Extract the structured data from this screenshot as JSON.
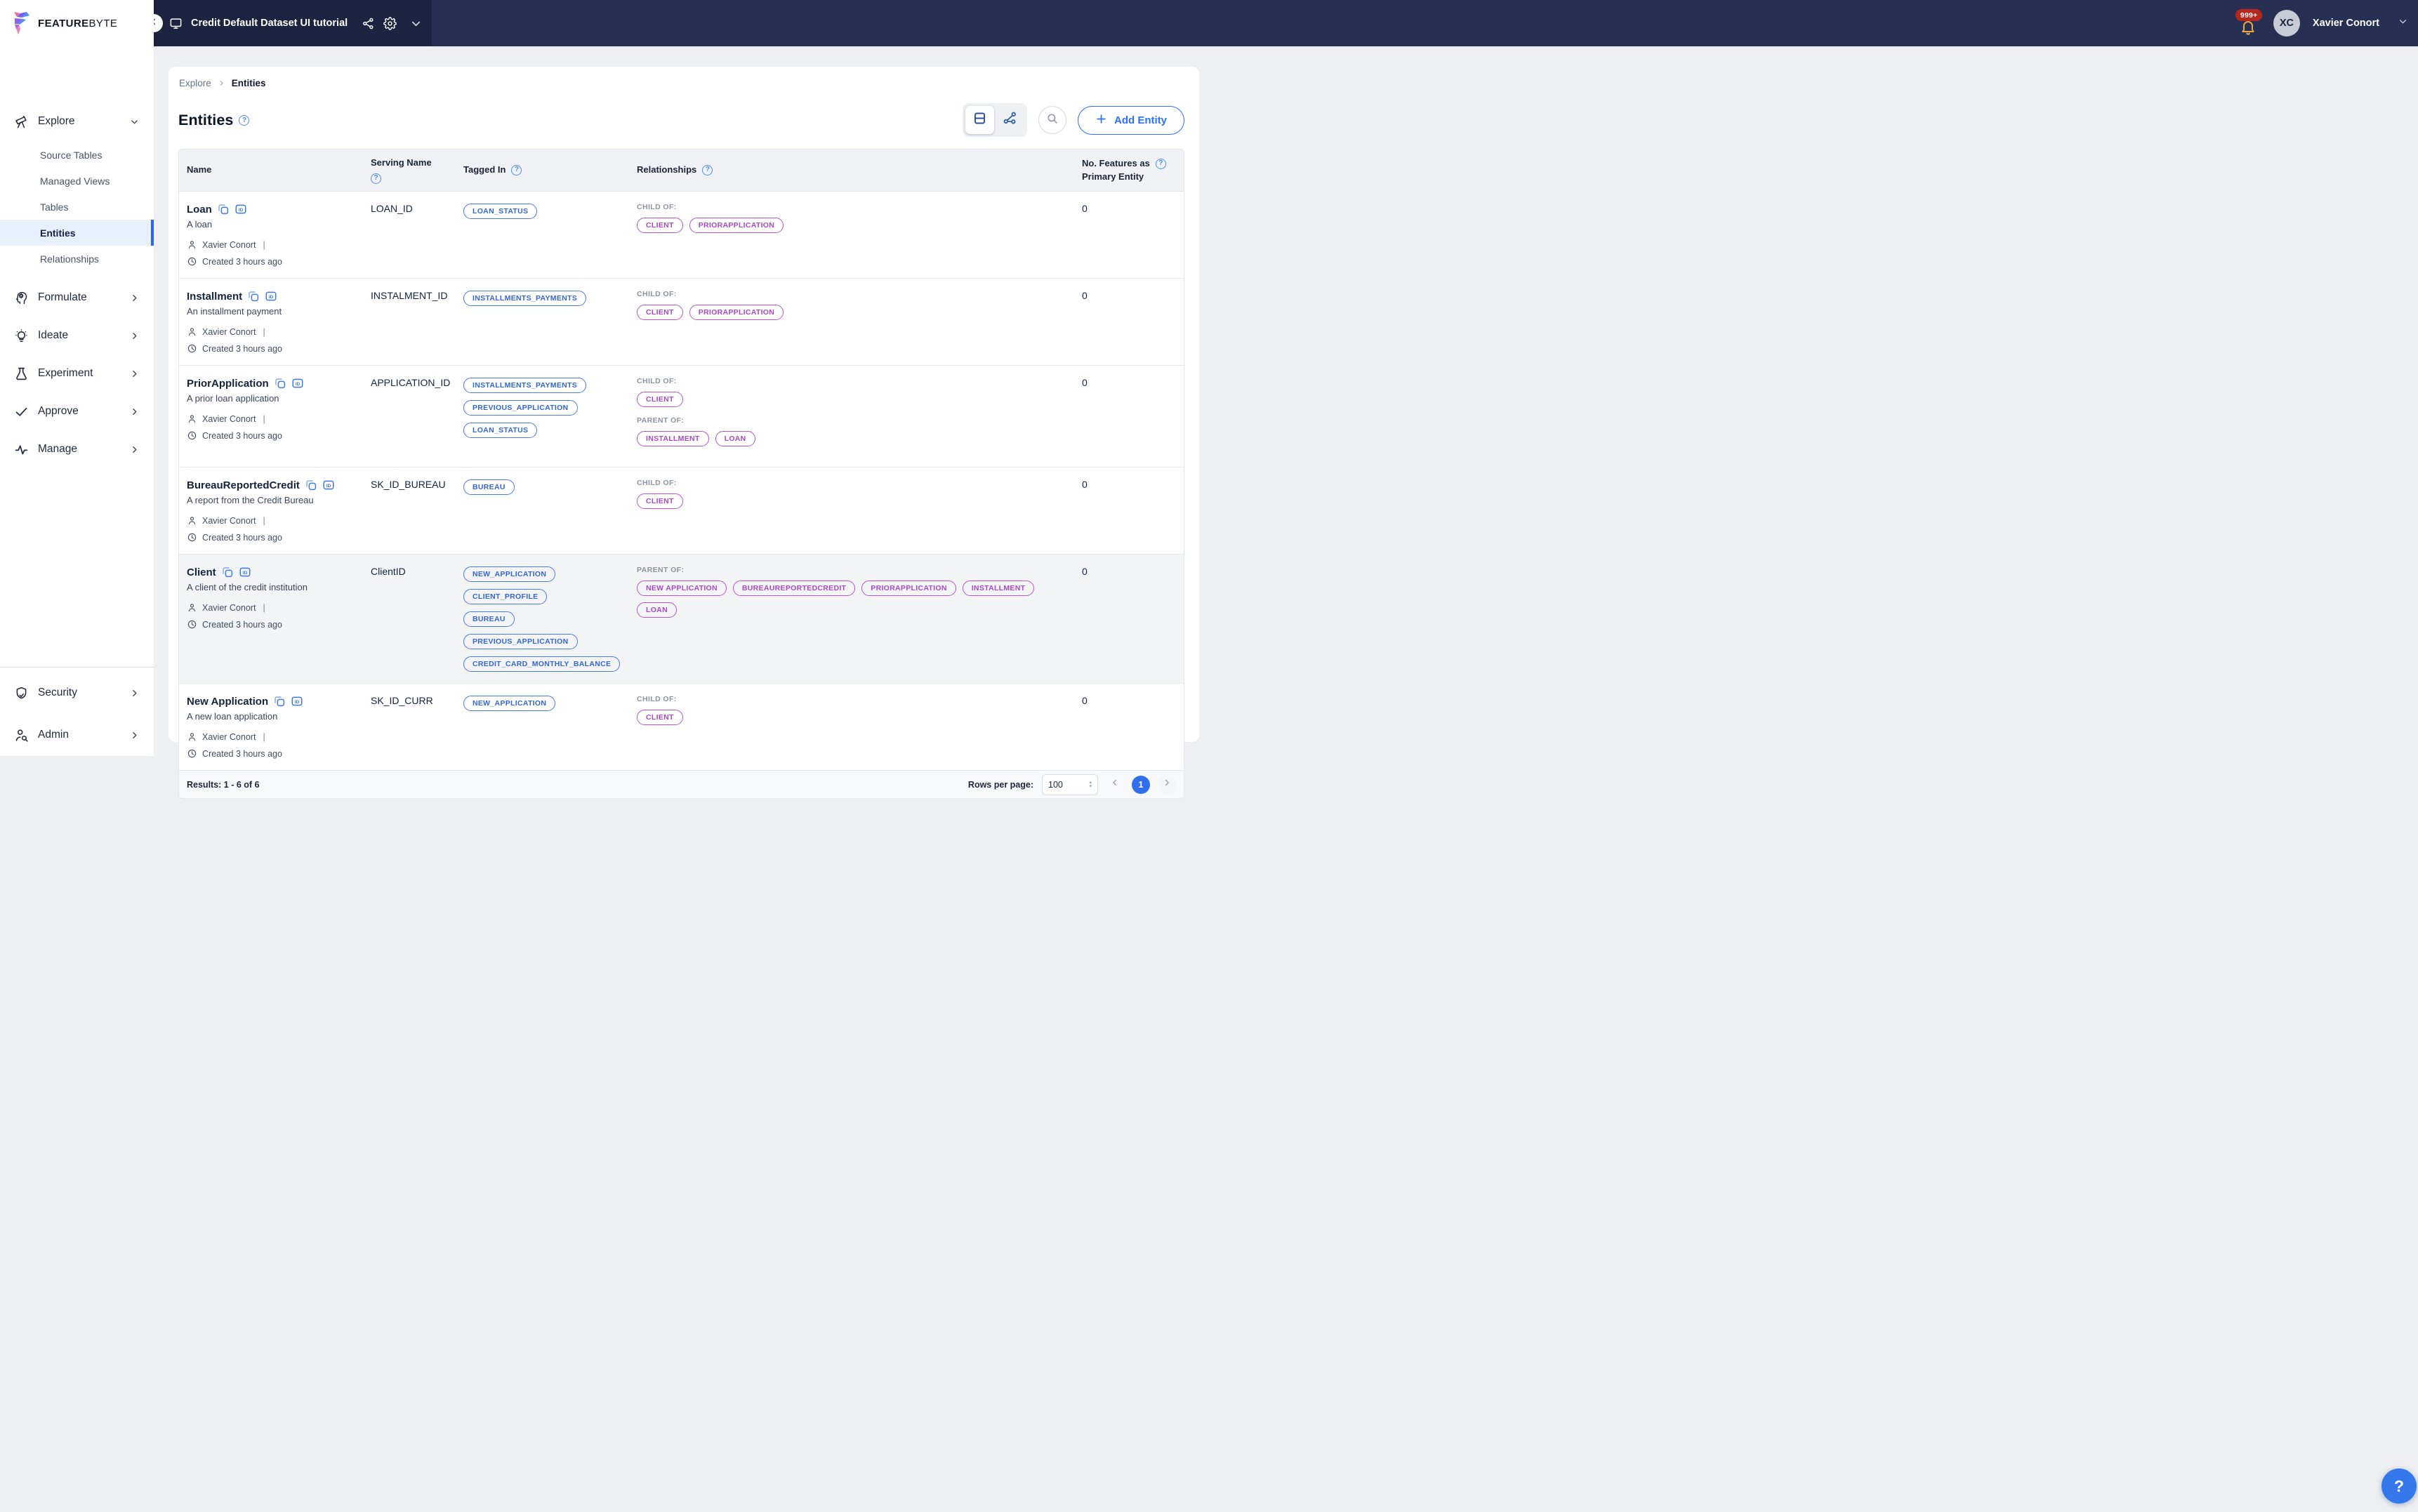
{
  "brand": {
    "name_bold": "FEATURE",
    "name_light": "BYTE"
  },
  "topbar": {
    "project_title": "Credit Default Dataset UI tutorial",
    "notifications_badge": "999+",
    "user": {
      "initials": "XC",
      "name": "Xavier Conort"
    }
  },
  "sidebar": {
    "items": [
      {
        "label": "Explore",
        "icon": "telescope-icon",
        "chevron": "down",
        "children": [
          {
            "label": "Source Tables"
          },
          {
            "label": "Managed Views"
          },
          {
            "label": "Tables"
          },
          {
            "label": "Entities",
            "active": true
          },
          {
            "label": "Relationships"
          }
        ]
      },
      {
        "label": "Formulate",
        "icon": "formulate-head-gear-icon",
        "chevron": "right"
      },
      {
        "label": "Ideate",
        "icon": "lightbulb-icon",
        "chevron": "right"
      },
      {
        "label": "Experiment",
        "icon": "flask-icon",
        "chevron": "right"
      },
      {
        "label": "Approve",
        "icon": "check-icon",
        "chevron": "right"
      },
      {
        "label": "Manage",
        "icon": "activity-icon",
        "chevron": "right"
      }
    ],
    "bottom_items": [
      {
        "label": "Security",
        "icon": "shield-check-icon",
        "chevron": "right"
      },
      {
        "label": "Admin",
        "icon": "user-search-icon",
        "chevron": "right"
      }
    ]
  },
  "breadcrumb": {
    "root": "Explore",
    "current": "Entities"
  },
  "page": {
    "title": "Entities"
  },
  "toolbar": {
    "add_button_label": "Add Entity"
  },
  "table": {
    "columns": {
      "name": "Name",
      "serving": "Serving Name",
      "tagged": "Tagged In",
      "relationships": "Relationships",
      "features_line1": "No. Features as",
      "features_line2": "Primary Entity"
    },
    "rows": [
      {
        "name": "Loan",
        "description": "A loan",
        "owner": "Xavier Conort",
        "created": "Created 3 hours ago",
        "serving_name": "LOAN_ID",
        "tagged_in": [
          "LOAN_STATUS"
        ],
        "relationships": [
          {
            "label": "CHILD OF:",
            "pills": [
              "CLIENT",
              "PRIORAPPLICATION"
            ]
          }
        ],
        "features": "0"
      },
      {
        "name": "Installment",
        "description": "An installment payment",
        "owner": "Xavier Conort",
        "created": "Created 3 hours ago",
        "serving_name": "INSTALMENT_ID",
        "tagged_in": [
          "INSTALLMENTS_PAYMENTS"
        ],
        "relationships": [
          {
            "label": "CHILD OF:",
            "pills": [
              "CLIENT",
              "PRIORAPPLICATION"
            ]
          }
        ],
        "features": "0"
      },
      {
        "name": "PriorApplication",
        "description": "A prior loan application",
        "owner": "Xavier Conort",
        "created": "Created 3 hours ago",
        "serving_name": "APPLICATION_ID",
        "tagged_in": [
          "INSTALLMENTS_PAYMENTS",
          "PREVIOUS_APPLICATION",
          "LOAN_STATUS"
        ],
        "relationships": [
          {
            "label": "CHILD OF:",
            "pills": [
              "CLIENT"
            ]
          },
          {
            "label": "PARENT OF:",
            "pills": [
              "INSTALLMENT",
              "LOAN"
            ]
          }
        ],
        "features": "0"
      },
      {
        "name": "BureauReportedCredit",
        "description": "A report from the Credit Bureau",
        "owner": "Xavier Conort",
        "created": "Created 3 hours ago",
        "serving_name": "SK_ID_BUREAU",
        "tagged_in": [
          "BUREAU"
        ],
        "relationships": [
          {
            "label": "CHILD OF:",
            "pills": [
              "CLIENT"
            ]
          }
        ],
        "features": "0"
      },
      {
        "name": "Client",
        "description": "A client of the credit institution",
        "owner": "Xavier Conort",
        "created": "Created 3 hours ago",
        "serving_name": "ClientID",
        "highlighted": true,
        "tagged_in": [
          "NEW_APPLICATION",
          "CLIENT_PROFILE",
          "BUREAU",
          "PREVIOUS_APPLICATION",
          "CREDIT_CARD_MONTHLY_BALANCE"
        ],
        "relationships": [
          {
            "label": "PARENT OF:",
            "pills": [
              "NEW APPLICATION",
              "BUREAUREPORTEDCREDIT",
              "PRIORAPPLICATION",
              "INSTALLMENT",
              "LOAN"
            ]
          }
        ],
        "features": "0"
      },
      {
        "name": "New Application",
        "description": "A new loan application",
        "owner": "Xavier Conort",
        "created": "Created 3 hours ago",
        "serving_name": "SK_ID_CURR",
        "tagged_in": [
          "NEW_APPLICATION"
        ],
        "relationships": [
          {
            "label": "CHILD OF:",
            "pills": [
              "CLIENT"
            ]
          }
        ],
        "features": "0"
      }
    ]
  },
  "footer": {
    "results": "Results: 1 - 6 of 6",
    "rows_per_page_label": "Rows per page:",
    "rows_per_page_value": "100",
    "current_page": "1"
  },
  "colors": {
    "topbar_navy": "#273052",
    "project_block_navy": "#1d2441",
    "accent_blue": "#2970ff",
    "pill_blue": "#3565dd",
    "pill_purple": "#a64ac9",
    "active_item_bg": "#e8f0fb",
    "badge_red": "#b7271d",
    "bell_gold": "#eaa83e"
  }
}
